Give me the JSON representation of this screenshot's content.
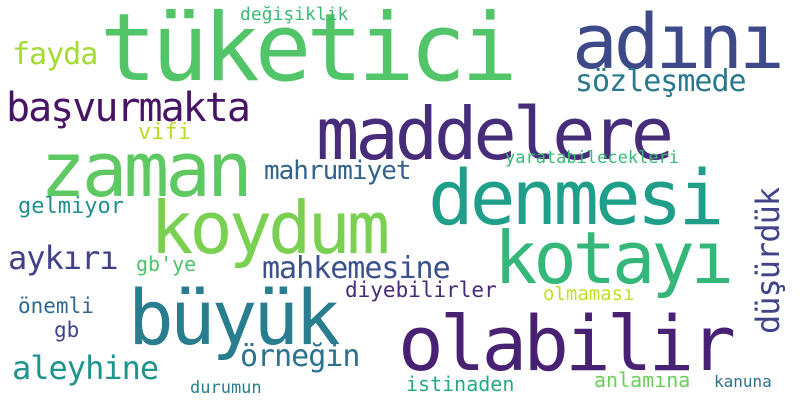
{
  "words": {
    "tuketici": "tüketici",
    "adini": "adını",
    "maddelere": "maddelere",
    "zaman": "zaman",
    "denmesi": "denmesi",
    "koydum": "koydum",
    "kotayi": "kotayı",
    "buyuk": "büyük",
    "olabilir": "olabilir",
    "basvurmakta": "başvurmakta",
    "sozlesmede": "sözleşmede",
    "fayda": "fayda",
    "degisiklik": "değişiklik",
    "vifi": "vifi",
    "mahrumiyet": "mahrumiyet",
    "yaratabilecekleri": "yaratabilecekleri",
    "dusurduk": "düşürdük",
    "gelmiyor": "gelmiyor",
    "aykiri": "aykırı",
    "gbye": "gb'ye",
    "mahkemesine": "mahkemesine",
    "diyebilirler": "diyebilirler",
    "olmamasi": "olmaması",
    "onemli": "önemli",
    "gb": "gb",
    "aleyhine": "aleyhine",
    "ornegin": "örneğin",
    "istinaden": "istinaden",
    "anlamina": "anlamına",
    "kanuna": "kanuna",
    "durumun": "durumun"
  },
  "colors": {
    "tuketici": "#52c569",
    "adini": "#3e4989",
    "maddelere": "#472c7a",
    "zaman": "#5ec962",
    "denmesi": "#1f9e89",
    "koydum": "#7ad151",
    "kotayi": "#35b779",
    "buyuk": "#287d8e",
    "olabilir": "#482173",
    "basvurmakta": "#471365",
    "sozlesmede": "#2a788e",
    "fayda": "#a5db36",
    "degisiklik": "#3bbb75",
    "vifi": "#b5de2b",
    "mahrumiyet": "#33638d",
    "yaratabilecekleri": "#3ab97a",
    "dusurduk": "#414487",
    "gelmiyor": "#21918c",
    "aykiri": "#424086",
    "gbye": "#4ec36b",
    "mahkemesine": "#3b518b",
    "diyebilirler": "#472a7a",
    "olmamasi": "#c2df23",
    "onemli": "#31688e",
    "gb": "#404588",
    "aleyhine": "#1f948c",
    "ornegin": "#2c728e",
    "istinaden": "#25ab82",
    "anlamina": "#6ccd5a",
    "kanuna": "#2d708e",
    "durumun": "#277f8e"
  }
}
